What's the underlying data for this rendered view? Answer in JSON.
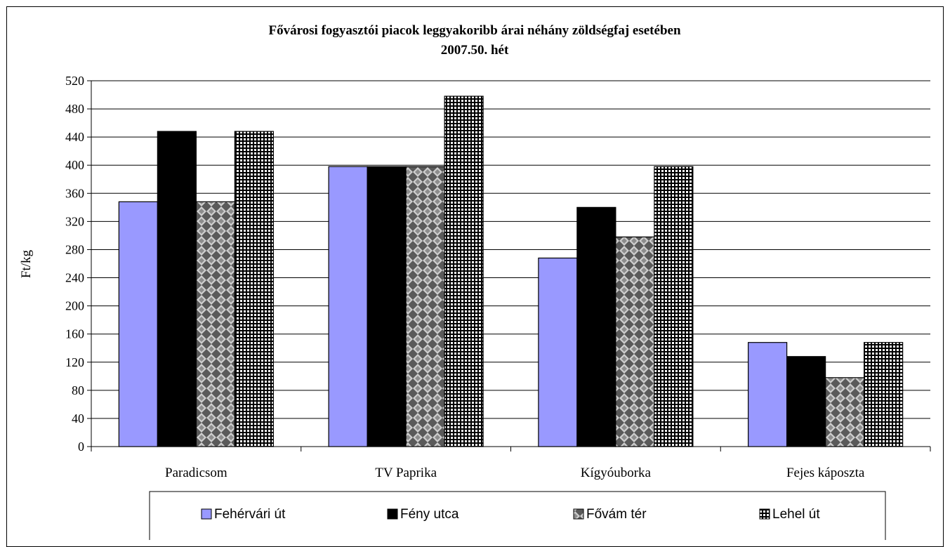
{
  "chart_data": {
    "type": "bar",
    "title": "Fővárosi fogyasztói piacok leggyakoribb árai néhány zöldségfaj esetében",
    "subtitle": "2007.50. hét",
    "xlabel": "",
    "ylabel": "Ft/kg",
    "ylim": [
      0,
      520
    ],
    "yticks": [
      0,
      40,
      80,
      120,
      160,
      200,
      240,
      280,
      320,
      360,
      400,
      440,
      480,
      520
    ],
    "grid": true,
    "legend_position": "bottom",
    "categories": [
      "Paradicsom",
      "TV Paprika",
      "Kígyóuborka",
      "Fejes káposzta"
    ],
    "series": [
      {
        "name": "Fehérvári út",
        "values": [
          348,
          398,
          268,
          148
        ],
        "color": "#9999ff",
        "pattern": "solid"
      },
      {
        "name": "Fény utca",
        "values": [
          448,
          398,
          340,
          128
        ],
        "color": "#000000",
        "pattern": "solid"
      },
      {
        "name": "Fővám tér",
        "values": [
          348,
          398,
          298,
          98
        ],
        "color": "#808080",
        "pattern": "checker"
      },
      {
        "name": "Lehel út",
        "values": [
          448,
          498,
          398,
          148
        ],
        "color": "#ffffff",
        "pattern": "grid"
      }
    ]
  }
}
